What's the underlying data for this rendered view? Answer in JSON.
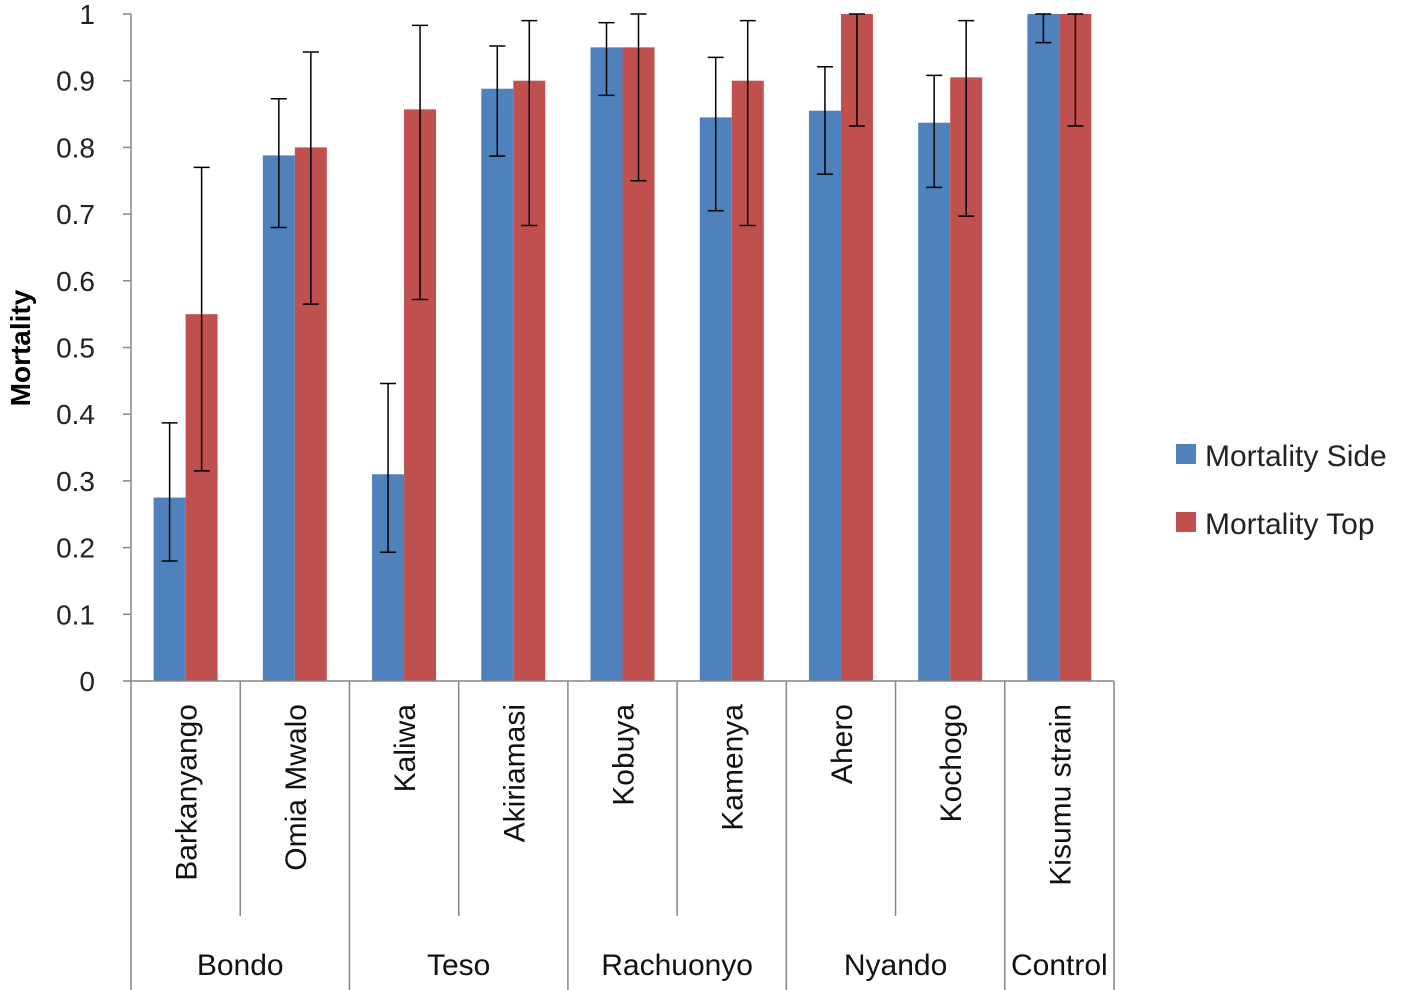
{
  "chart_data": {
    "type": "bar",
    "ylabel": "Mortality",
    "ylim": [
      0,
      1
    ],
    "yticks": [
      "0",
      "0.1",
      "0.2",
      "0.3",
      "0.4",
      "0.5",
      "0.6",
      "0.7",
      "0.8",
      "0.9",
      "1"
    ],
    "grid": false,
    "legend_position": "right",
    "categories": [
      "Barkanyango",
      "Omia Mwalo",
      "Kaliwa",
      "Akiriamasi",
      "Kobuya",
      "Kamenya",
      "Ahero",
      "Kochogo",
      "Kisumu strain"
    ],
    "groups": [
      {
        "label": "Bondo",
        "span": 2
      },
      {
        "label": "Teso",
        "span": 2
      },
      {
        "label": "Rachuonyo",
        "span": 2
      },
      {
        "label": "Nyando",
        "span": 2
      },
      {
        "label": "Control",
        "span": 1
      }
    ],
    "series": [
      {
        "name": "Mortality Side",
        "color": "#4f81bd",
        "values": [
          0.275,
          0.788,
          0.31,
          0.888,
          0.95,
          0.845,
          0.855,
          0.837,
          1.0
        ],
        "error_low": [
          0.18,
          0.68,
          0.193,
          0.787,
          0.878,
          0.705,
          0.76,
          0.74,
          0.957
        ],
        "error_high": [
          0.387,
          0.873,
          0.446,
          0.952,
          0.987,
          0.935,
          0.921,
          0.908,
          1.0
        ]
      },
      {
        "name": "Mortality Top",
        "color": "#c0504d",
        "values": [
          0.55,
          0.8,
          0.857,
          0.9,
          0.95,
          0.9,
          1.0,
          0.905,
          1.0
        ],
        "error_low": [
          0.315,
          0.565,
          0.572,
          0.683,
          0.75,
          0.683,
          0.832,
          0.697,
          0.832
        ],
        "error_high": [
          0.77,
          0.943,
          0.983,
          0.99,
          1.0,
          0.99,
          1.0,
          0.99,
          1.0
        ]
      }
    ]
  }
}
